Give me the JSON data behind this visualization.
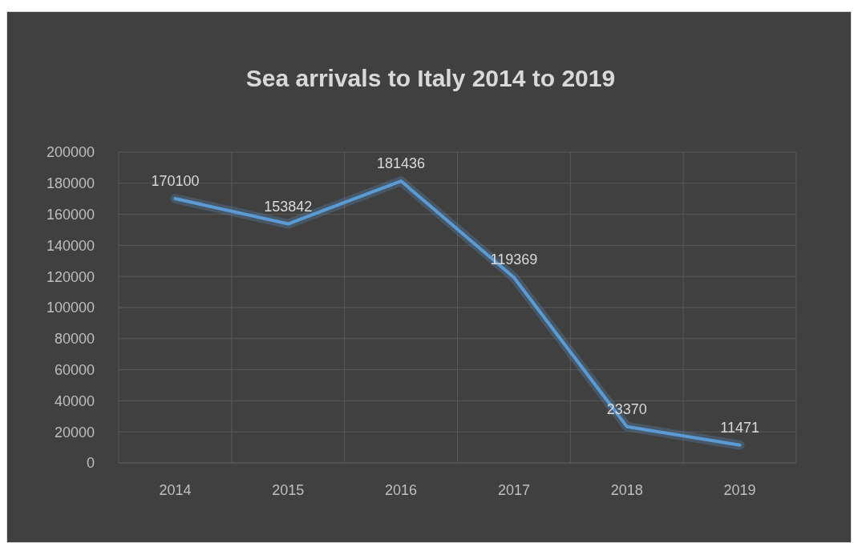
{
  "chart_data": {
    "type": "line",
    "title": "Sea arrivals to Italy 2014 to 2019",
    "categories": [
      "2014",
      "2015",
      "2016",
      "2017",
      "2018",
      "2019"
    ],
    "series": [
      {
        "color": "#5b9bd5",
        "values": [
          170100,
          153842,
          181436,
          119369,
          23370,
          11471
        ]
      }
    ],
    "ylim": [
      0,
      200000
    ],
    "yticks": [
      0,
      20000,
      40000,
      60000,
      80000,
      100000,
      120000,
      140000,
      160000,
      180000,
      200000
    ],
    "grid": true,
    "data_labels": true,
    "line_style": "solid"
  }
}
